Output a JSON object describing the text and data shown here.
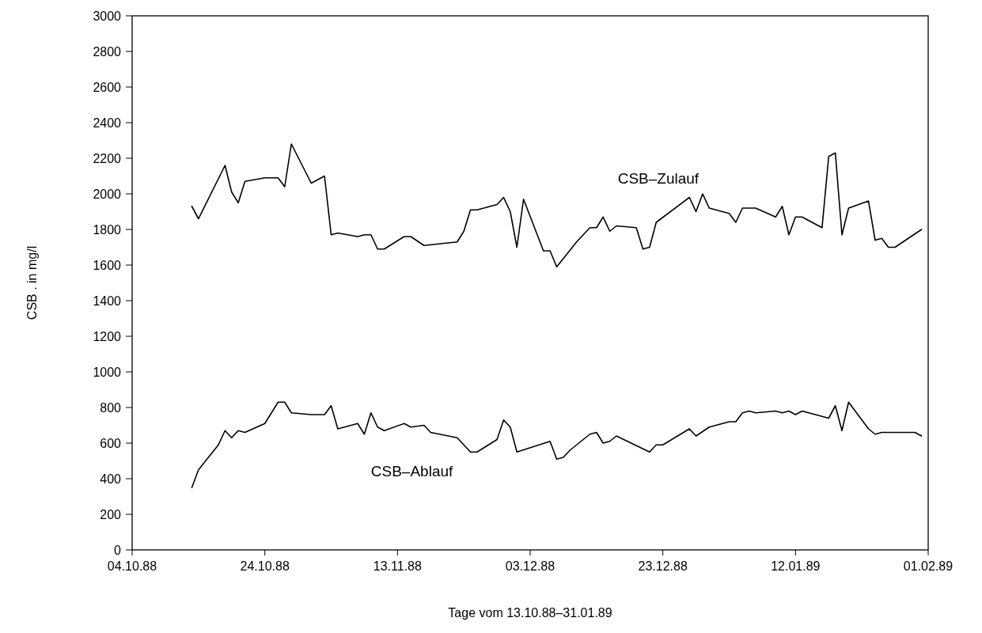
{
  "chart_data": {
    "type": "line",
    "xlabel": "Tage vom 13.10.88–31.01.89",
    "ylabel": "CSB . in mg/l",
    "xlim": [
      "1988-10-04",
      "1989-02-01"
    ],
    "xticks": [
      {
        "value": "1988-10-04",
        "label": "04.10.88"
      },
      {
        "value": "1988-10-24",
        "label": "24.10.88"
      },
      {
        "value": "1988-11-13",
        "label": "13.11.88"
      },
      {
        "value": "1988-12-03",
        "label": "03.12.88"
      },
      {
        "value": "1988-12-23",
        "label": "23.12.88"
      },
      {
        "value": "1989-01-12",
        "label": "12.01.89"
      },
      {
        "value": "1989-02-01",
        "label": "01.02.89"
      }
    ],
    "ylim": [
      0,
      3000
    ],
    "yticks": [
      0,
      200,
      400,
      600,
      800,
      1000,
      1200,
      1400,
      1600,
      1800,
      2000,
      2200,
      2400,
      2600,
      2800,
      3000
    ],
    "grid": false,
    "legend": false,
    "marker": "none",
    "line_style": "solid",
    "series": [
      {
        "name": "CSB–Zulauf",
        "color": "#000000",
        "x": [
          "1988-10-13",
          "1988-10-14",
          "1988-10-18",
          "1988-10-19",
          "1988-10-20",
          "1988-10-21",
          "1988-10-24",
          "1988-10-26",
          "1988-10-27",
          "1988-10-28",
          "1988-10-31",
          "1988-11-02",
          "1988-11-03",
          "1988-11-04",
          "1988-11-07",
          "1988-11-08",
          "1988-11-09",
          "1988-11-10",
          "1988-11-11",
          "1988-11-14",
          "1988-11-15",
          "1988-11-17",
          "1988-11-22",
          "1988-11-23",
          "1988-11-24",
          "1988-11-25",
          "1988-11-28",
          "1988-11-29",
          "1988-11-30",
          "1988-12-01",
          "1988-12-02",
          "1988-12-05",
          "1988-12-06",
          "1988-12-07",
          "1988-12-10",
          "1988-12-12",
          "1988-12-13",
          "1988-12-14",
          "1988-12-15",
          "1988-12-16",
          "1988-12-19",
          "1988-12-20",
          "1988-12-21",
          "1988-12-22",
          "1988-12-27",
          "1988-12-28",
          "1988-12-29",
          "1988-12-30",
          "1989-01-02",
          "1989-01-03",
          "1989-01-04",
          "1989-01-06",
          "1989-01-09",
          "1989-01-10",
          "1989-01-11",
          "1989-01-12",
          "1989-01-13",
          "1989-01-16",
          "1989-01-17",
          "1989-01-18",
          "1989-01-19",
          "1989-01-20",
          "1989-01-23",
          "1989-01-24",
          "1989-01-25",
          "1989-01-26",
          "1989-01-27",
          "1989-01-31"
        ],
        "values": [
          1930,
          1860,
          2160,
          2010,
          1950,
          2070,
          2090,
          2090,
          2040,
          2280,
          2060,
          2100,
          1770,
          1780,
          1760,
          1770,
          1770,
          1690,
          1690,
          1760,
          1760,
          1710,
          1730,
          1790,
          1910,
          1910,
          1940,
          1980,
          1900,
          1700,
          1970,
          1680,
          1680,
          1590,
          1730,
          1810,
          1810,
          1870,
          1790,
          1820,
          1810,
          1690,
          1700,
          1840,
          1980,
          1900,
          2000,
          1920,
          1890,
          1840,
          1920,
          1920,
          1870,
          1930,
          1770,
          1870,
          1870,
          1810,
          2210,
          2230,
          1770,
          1920,
          1960,
          1740,
          1750,
          1700,
          1700,
          1800
        ]
      },
      {
        "name": "CSB–Ablauf",
        "color": "#000000",
        "x": [
          "1988-10-13",
          "1988-10-14",
          "1988-10-17",
          "1988-10-18",
          "1988-10-19",
          "1988-10-20",
          "1988-10-21",
          "1988-10-24",
          "1988-10-26",
          "1988-10-27",
          "1988-10-28",
          "1988-10-31",
          "1988-11-02",
          "1988-11-03",
          "1988-11-04",
          "1988-11-07",
          "1988-11-08",
          "1988-11-09",
          "1988-11-10",
          "1988-11-11",
          "1988-11-14",
          "1988-11-15",
          "1988-11-17",
          "1988-11-18",
          "1988-11-22",
          "1988-11-24",
          "1988-11-25",
          "1988-11-28",
          "1988-11-29",
          "1988-11-30",
          "1988-12-01",
          "1988-12-06",
          "1988-12-07",
          "1988-12-08",
          "1988-12-09",
          "1988-12-12",
          "1988-12-13",
          "1988-12-14",
          "1988-12-15",
          "1988-12-16",
          "1988-12-21",
          "1988-12-22",
          "1988-12-23",
          "1988-12-27",
          "1988-12-28",
          "1988-12-30",
          "1989-01-02",
          "1989-01-03",
          "1989-01-04",
          "1989-01-05",
          "1989-01-06",
          "1989-01-09",
          "1989-01-10",
          "1989-01-11",
          "1989-01-12",
          "1989-01-13",
          "1989-01-14",
          "1989-01-17",
          "1989-01-18",
          "1989-01-19",
          "1989-01-20",
          "1989-01-23",
          "1989-01-24",
          "1989-01-25",
          "1989-01-30",
          "1989-01-31"
        ],
        "values": [
          350,
          450,
          590,
          670,
          630,
          670,
          660,
          710,
          830,
          830,
          770,
          760,
          760,
          810,
          680,
          710,
          650,
          770,
          690,
          670,
          710,
          690,
          700,
          660,
          630,
          550,
          550,
          620,
          730,
          690,
          550,
          610,
          510,
          520,
          560,
          650,
          660,
          600,
          610,
          640,
          550,
          590,
          590,
          680,
          640,
          690,
          720,
          720,
          770,
          780,
          770,
          780,
          770,
          780,
          760,
          780,
          770,
          740,
          810,
          670,
          830,
          680,
          650,
          660,
          660,
          640
        ]
      }
    ]
  }
}
